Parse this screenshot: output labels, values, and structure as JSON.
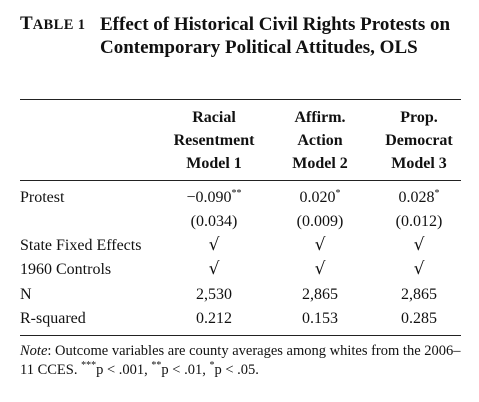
{
  "table": {
    "label_cap": "T",
    "label_rest": "ABLE 1",
    "title": "Effect of Historical Civil Rights Protests on Contemporary Political Attitudes, OLS",
    "columns": [
      {
        "line1": "Racial",
        "line2": "Resentment",
        "line3": "Model 1"
      },
      {
        "line1": "Affirm.",
        "line2": "Action",
        "line3": "Model 2"
      },
      {
        "line1": "Prop.",
        "line2": "Democrat",
        "line3": "Model 3"
      }
    ],
    "rows": [
      {
        "label": "Protest",
        "values": [
          "−0.090",
          "0.020",
          "0.028"
        ],
        "stars": [
          "**",
          "*",
          "*"
        ]
      },
      {
        "label": "",
        "values": [
          "(0.034)",
          "(0.009)",
          "(0.012)"
        ],
        "stars": [
          "",
          "",
          ""
        ]
      },
      {
        "label": "State Fixed Effects",
        "values": [
          "√",
          "√",
          "√"
        ],
        "stars": [
          "",
          "",
          ""
        ]
      },
      {
        "label": "1960 Controls",
        "values": [
          "√",
          "√",
          "√"
        ],
        "stars": [
          "",
          "",
          ""
        ]
      },
      {
        "label": "N",
        "values": [
          "2,530",
          "2,865",
          "2,865"
        ],
        "stars": [
          "",
          "",
          ""
        ]
      },
      {
        "label": "R-squared",
        "values": [
          "0.212",
          "0.153",
          "0.285"
        ],
        "stars": [
          "",
          "",
          ""
        ]
      }
    ],
    "note_label": "Note",
    "note_text": ": Outcome variables are county averages among whites from the 2006–11 CCES. ",
    "note_sig": [
      {
        "stars": "***",
        "text": "p < .001, "
      },
      {
        "stars": "**",
        "text": "p < .01, "
      },
      {
        "stars": "*",
        "text": "p < .05."
      }
    ]
  }
}
